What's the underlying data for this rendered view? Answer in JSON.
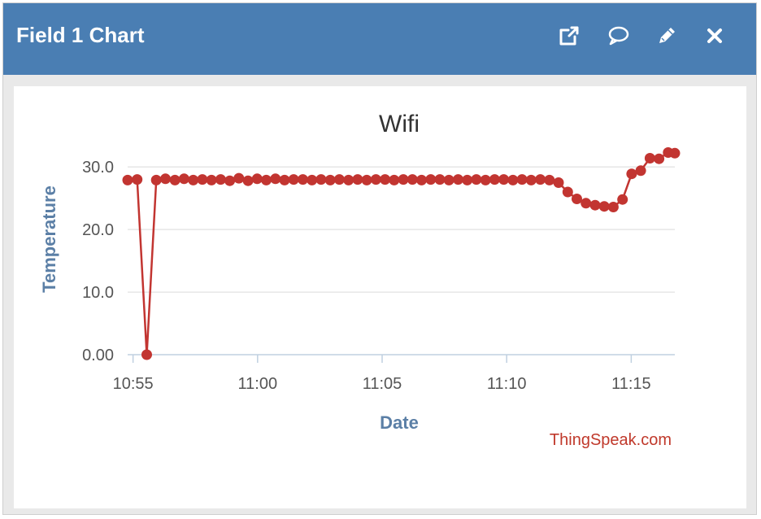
{
  "widget": {
    "title": "Field 1 Chart",
    "header_color": "#4a7eb3",
    "icons": [
      "external-link-icon",
      "comment-icon",
      "pencil-icon",
      "close-icon"
    ]
  },
  "credit": "ThingSpeak.com",
  "chart_data": {
    "type": "line",
    "title": "Wifi",
    "xlabel": "Date",
    "ylabel": "Temperature",
    "ylim": [
      0,
      32.5
    ],
    "xlim": [
      "10:54:47",
      "11:16:45"
    ],
    "y_ticks": [
      "0.00",
      "10.0",
      "20.0",
      "30.0"
    ],
    "y_tick_values": [
      0,
      10,
      20,
      30
    ],
    "x_ticks": [
      "10:55",
      "11:00",
      "11:05",
      "11:10",
      "11:15"
    ],
    "x_tick_values": [
      "10:55",
      "11:00",
      "11:05",
      "11:10",
      "11:15"
    ],
    "grid": true,
    "series_color": "#c23531",
    "series": [
      {
        "name": "",
        "x": [
          "10:54:47",
          "10:55:10",
          "10:55:33",
          "10:55:56",
          "10:56:18",
          "10:56:41",
          "10:57:03",
          "10:57:25",
          "10:57:47",
          "10:58:09",
          "10:58:31",
          "10:58:53",
          "10:59:15",
          "10:59:37",
          "10:59:59",
          "11:00:21",
          "11:00:43",
          "11:01:05",
          "11:01:27",
          "11:01:49",
          "11:02:11",
          "11:02:33",
          "11:02:55",
          "11:03:17",
          "11:03:39",
          "11:04:01",
          "11:04:23",
          "11:04:45",
          "11:05:07",
          "11:05:29",
          "11:05:51",
          "11:06:13",
          "11:06:35",
          "11:06:57",
          "11:07:19",
          "11:07:41",
          "11:08:03",
          "11:08:25",
          "11:08:47",
          "11:09:09",
          "11:09:31",
          "11:09:53",
          "11:10:15",
          "11:10:37",
          "11:10:59",
          "11:11:21",
          "11:11:43",
          "11:12:05",
          "11:12:27",
          "11:12:49",
          "11:13:11",
          "11:13:33",
          "11:13:55",
          "11:14:17",
          "11:14:39",
          "11:15:01",
          "11:15:23",
          "11:15:45",
          "11:16:07",
          "11:16:29",
          "11:16:45"
        ],
        "y": [
          27.9,
          28.0,
          0.0,
          27.9,
          28.1,
          27.9,
          28.1,
          27.9,
          28.0,
          27.9,
          28.0,
          27.8,
          28.2,
          27.8,
          28.1,
          27.9,
          28.1,
          27.9,
          28.0,
          28.0,
          27.9,
          28.0,
          27.9,
          28.0,
          27.9,
          28.0,
          27.9,
          28.0,
          28.0,
          27.9,
          28.0,
          28.0,
          27.9,
          28.0,
          28.0,
          27.9,
          28.0,
          27.9,
          28.0,
          27.9,
          28.0,
          28.0,
          27.9,
          28.0,
          27.9,
          28.0,
          27.9,
          27.5,
          26.0,
          24.9,
          24.2,
          23.9,
          23.7,
          23.6,
          24.8,
          28.9,
          29.4,
          31.4,
          31.3,
          32.3,
          32.2
        ]
      }
    ]
  }
}
